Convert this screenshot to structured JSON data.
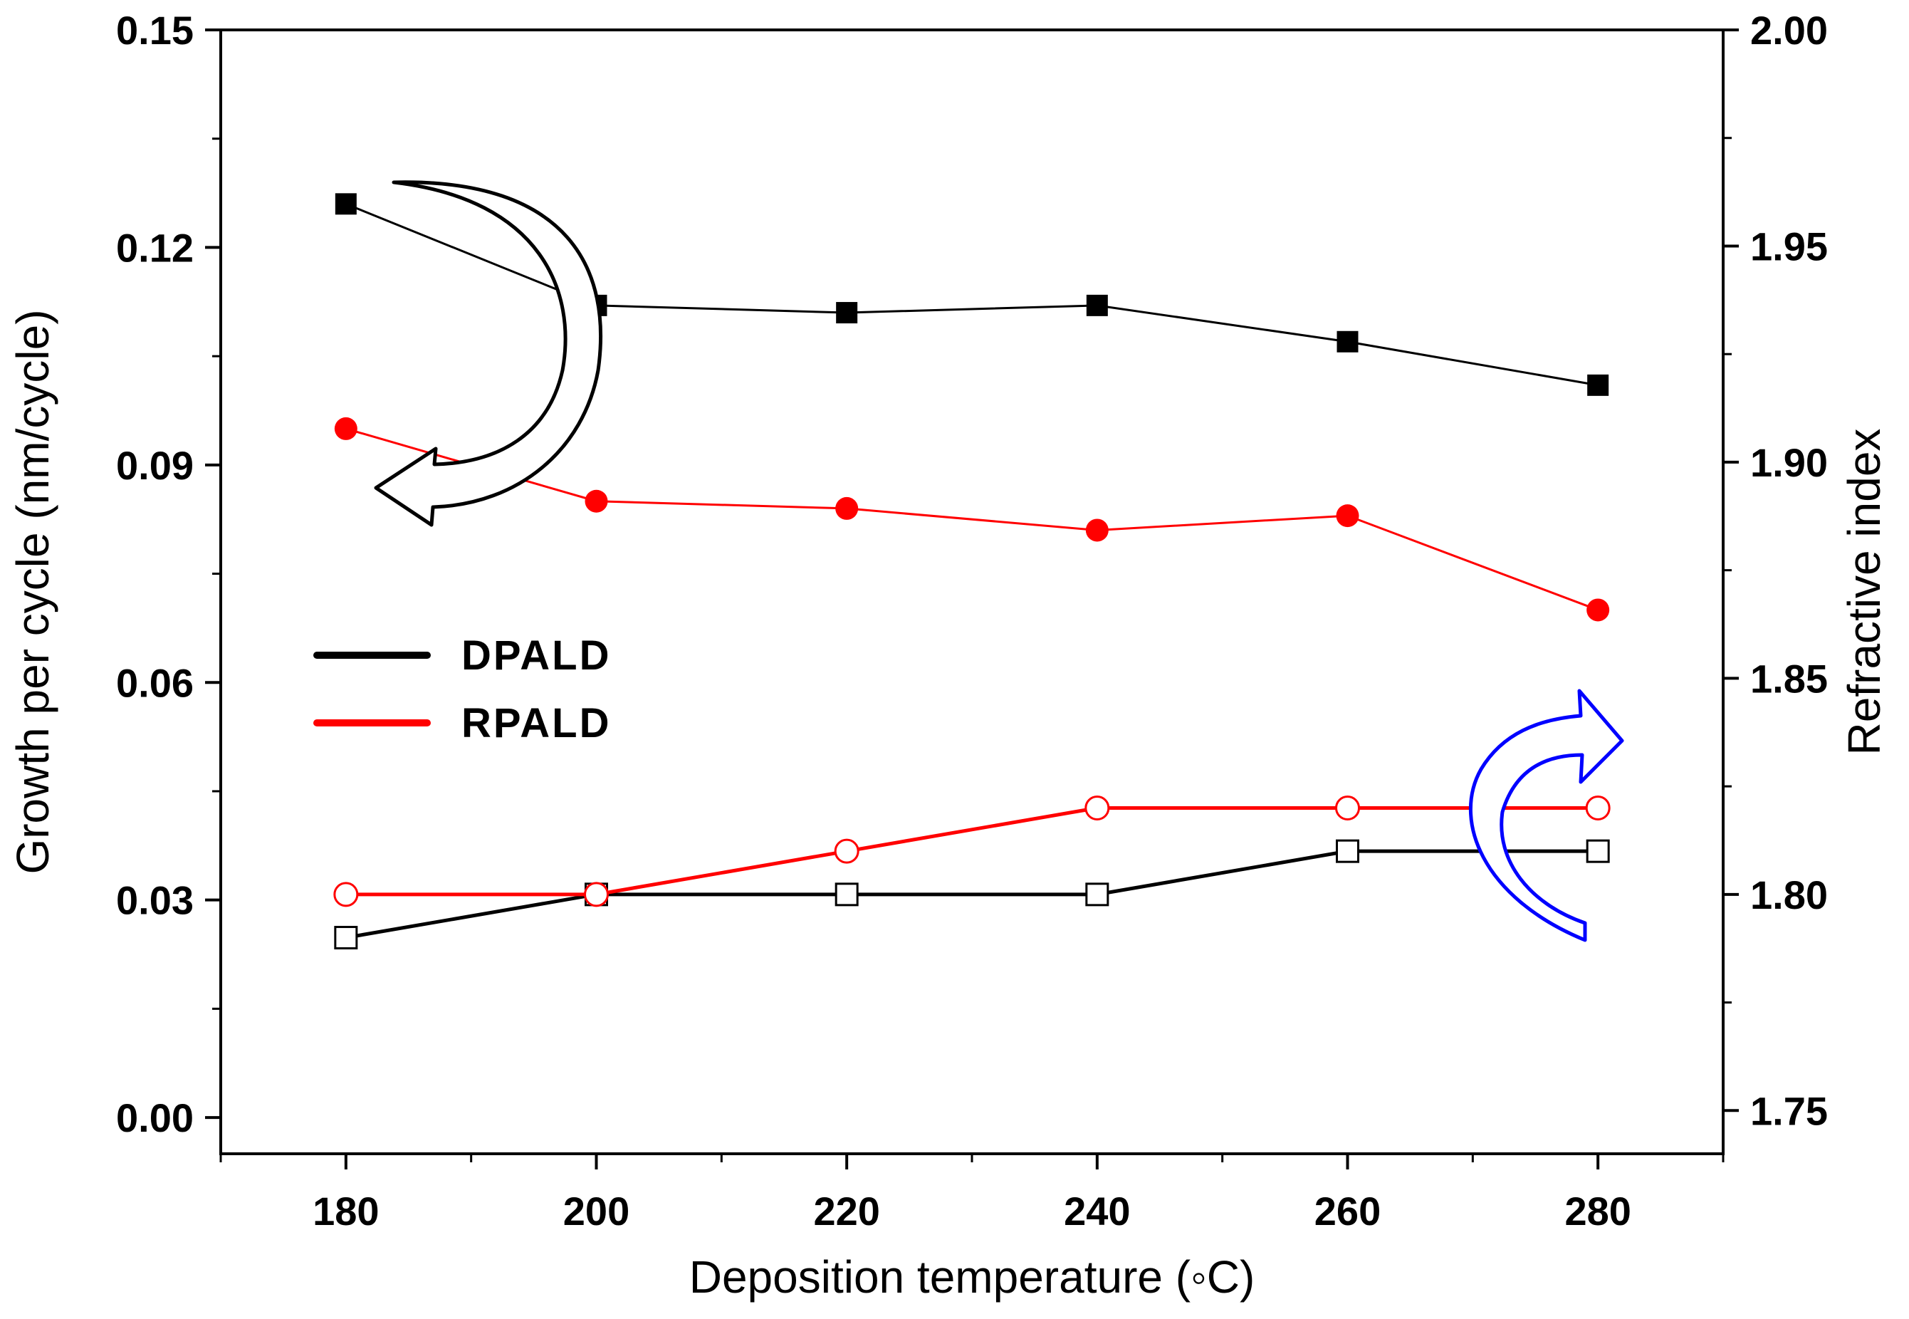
{
  "chart_data": {
    "type": "line",
    "title": "",
    "xlabel": "Deposition temperature (◦C)",
    "ylabel_left": "Growth per cycle (nm/cycle)",
    "ylabel_right": "Refractive index",
    "xlim": [
      170,
      290
    ],
    "ylim_left": [
      -0.005,
      0.15
    ],
    "ylim_right": [
      1.74,
      2.0
    ],
    "x_ticks": [
      180,
      200,
      220,
      240,
      260,
      280
    ],
    "x_tick_labels": [
      "180",
      "200",
      "220",
      "240",
      "260",
      "280"
    ],
    "y_left_ticks": [
      0.0,
      0.03,
      0.06,
      0.09,
      0.12,
      0.15
    ],
    "y_left_tick_labels": [
      "0.00",
      "0.03",
      "0.06",
      "0.09",
      "0.12",
      "0.15"
    ],
    "y_right_ticks": [
      1.75,
      1.8,
      1.85,
      1.9,
      1.95,
      2.0
    ],
    "y_right_tick_labels": [
      "1.75",
      "1.80",
      "1.85",
      "1.90",
      "1.95",
      "2.00"
    ],
    "x": [
      180,
      200,
      220,
      240,
      260,
      280
    ],
    "series": [
      {
        "name": "DPALD",
        "axis": "left",
        "quantity": "growth per cycle",
        "marker": "square-filled",
        "color": "#000000",
        "values": [
          0.126,
          0.112,
          0.111,
          0.112,
          0.107,
          0.101
        ]
      },
      {
        "name": "RPALD",
        "axis": "left",
        "quantity": "growth per cycle",
        "marker": "circle-filled",
        "color": "#ff0000",
        "values": [
          0.095,
          0.085,
          0.084,
          0.081,
          0.083,
          0.07
        ]
      },
      {
        "name": "DPALD",
        "axis": "right",
        "quantity": "refractive index",
        "marker": "square-open",
        "color": "#000000",
        "values": [
          1.79,
          1.8,
          1.8,
          1.8,
          1.81,
          1.81
        ]
      },
      {
        "name": "RPALD",
        "axis": "right",
        "quantity": "refractive index",
        "marker": "circle-open",
        "color": "#ff0000",
        "values": [
          1.8,
          1.8,
          1.81,
          1.82,
          1.82,
          1.82
        ]
      }
    ],
    "legend": {
      "position": "center-left",
      "entries": [
        {
          "label": "DPALD",
          "color": "#000000"
        },
        {
          "label": "RPALD",
          "color": "#ff0000"
        }
      ]
    },
    "annotations": [
      {
        "type": "curved-arrow",
        "points_to": "left-axis",
        "color": "#000000"
      },
      {
        "type": "curved-arrow",
        "points_to": "right-axis",
        "color": "#0000ff"
      }
    ]
  }
}
